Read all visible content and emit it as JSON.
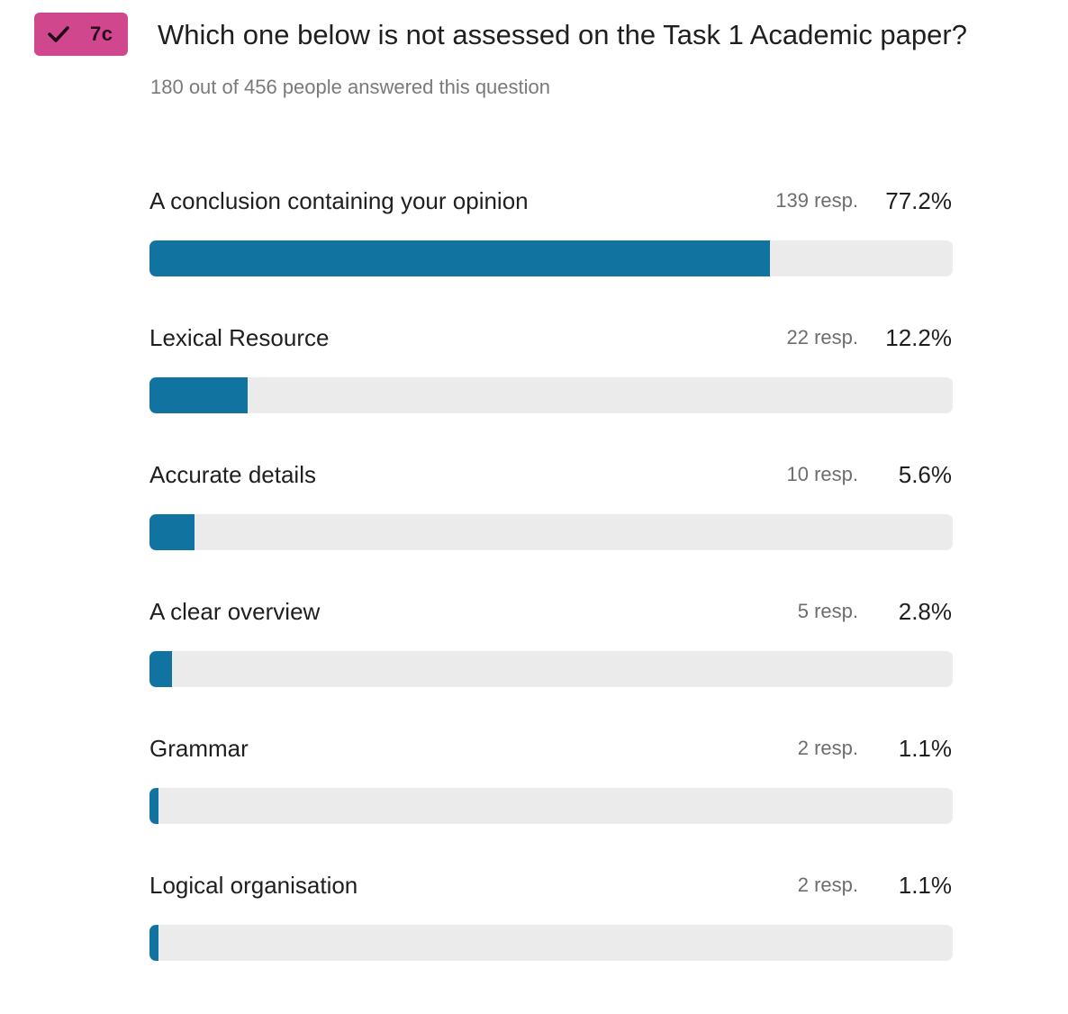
{
  "badge": {
    "label": "7c",
    "icon": "check-icon",
    "color": "#d1478e"
  },
  "question": {
    "title": "Which one below is not assessed on the Task 1 Academic paper?",
    "answered_text": "180 out of 456 people answered this question"
  },
  "colors": {
    "bar_fill": "#11739f",
    "bar_track": "#ebebeb"
  },
  "chart_data": {
    "type": "bar",
    "orientation": "horizontal",
    "categories": [
      "A conclusion containing your opinion",
      "Lexical Resource",
      "Accurate details",
      "A clear overview",
      "Grammar",
      "Logical organisation"
    ],
    "values": [
      77.2,
      12.2,
      5.6,
      2.8,
      1.1,
      1.1
    ],
    "responses": [
      139,
      22,
      10,
      5,
      2,
      2
    ],
    "resp_labels": [
      "139 resp.",
      "22 resp.",
      "10 resp.",
      "5 resp.",
      "2 resp.",
      "2 resp."
    ],
    "value_labels": [
      "77.2%",
      "12.2%",
      "5.6%",
      "2.8%",
      "1.1%",
      "1.1%"
    ],
    "xlim": [
      0,
      100
    ]
  }
}
